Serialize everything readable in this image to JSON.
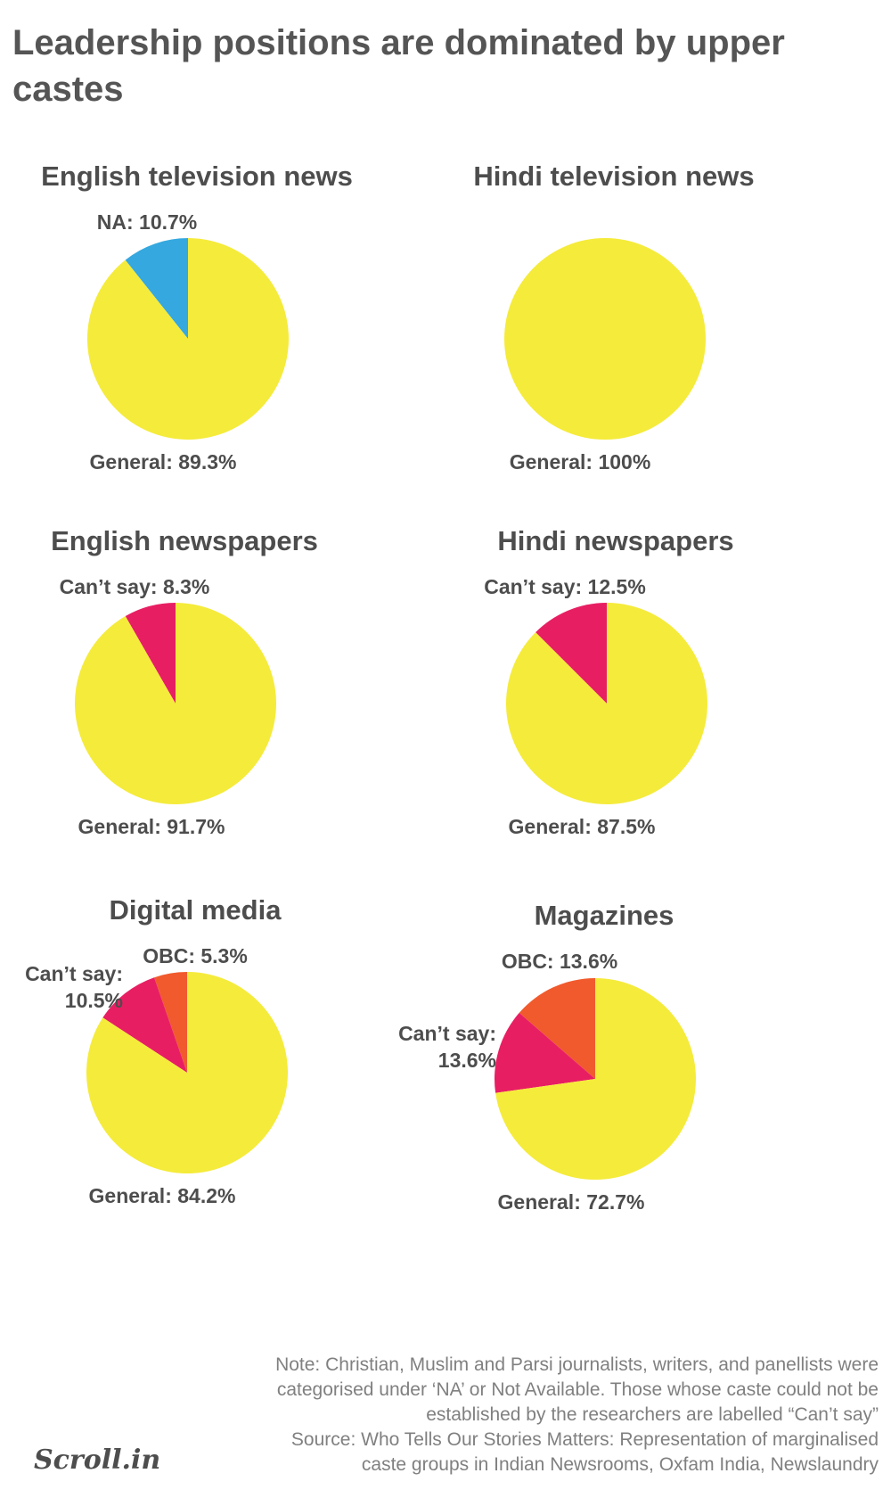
{
  "title": "Leadership positions are dominated by upper castes",
  "colors": {
    "General": "#F5EB3B",
    "NA": "#34A8DF",
    "Can't say": "#E81E63",
    "OBC": "#F15A2C"
  },
  "chart_data": [
    {
      "type": "pie",
      "title": "English television news",
      "slices": [
        {
          "name": "General",
          "value": 89.3,
          "label": "General: 89.3%"
        },
        {
          "name": "NA",
          "value": 10.7,
          "label": "NA: 10.7%"
        }
      ]
    },
    {
      "type": "pie",
      "title": "Hindi television news",
      "slices": [
        {
          "name": "General",
          "value": 100,
          "label": "General: 100%"
        }
      ]
    },
    {
      "type": "pie",
      "title": "English newspapers",
      "slices": [
        {
          "name": "General",
          "value": 91.7,
          "label": "General: 91.7%"
        },
        {
          "name": "Can't say",
          "value": 8.3,
          "label": "Can’t say: 8.3%"
        }
      ]
    },
    {
      "type": "pie",
      "title": "Hindi newspapers",
      "slices": [
        {
          "name": "General",
          "value": 87.5,
          "label": "General: 87.5%"
        },
        {
          "name": "Can't say",
          "value": 12.5,
          "label": "Can’t say: 12.5%"
        }
      ]
    },
    {
      "type": "pie",
      "title": "Digital media",
      "slices": [
        {
          "name": "General",
          "value": 84.2,
          "label": "General: 84.2%"
        },
        {
          "name": "Can't say",
          "value": 10.5,
          "label": "Can’t say:\n10.5%"
        },
        {
          "name": "OBC",
          "value": 5.3,
          "label": "OBC: 5.3%"
        }
      ]
    },
    {
      "type": "pie",
      "title": "Magazines",
      "slices": [
        {
          "name": "General",
          "value": 72.7,
          "label": "General: 72.7%"
        },
        {
          "name": "Can't say",
          "value": 13.6,
          "label": "Can’t say:\n13.6%"
        },
        {
          "name": "OBC",
          "value": 13.6,
          "label": "OBC: 13.6%"
        }
      ]
    }
  ],
  "note_lines": [
    "Note: Christian, Muslim and Parsi journalists, writers, and panellists were",
    "categorised under ‘NA’ or Not Available. Those whose caste could not be",
    "established by the researchers are labelled “Can’t say”",
    "Source: Who Tells Our Stories Matters: Representation of marginalised",
    "caste groups in Indian Newsrooms, Oxfam India, Newslaundry"
  ],
  "logo": "Scroll.in"
}
